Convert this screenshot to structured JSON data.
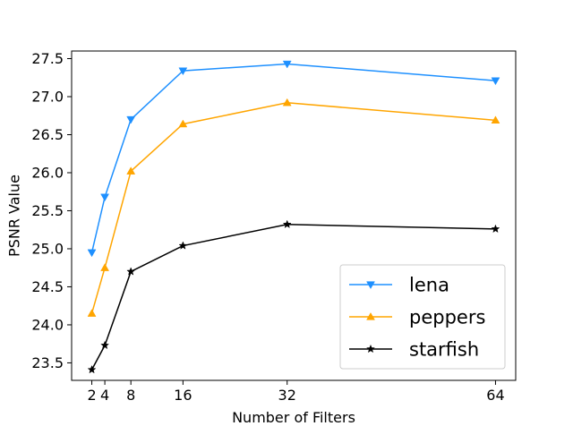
{
  "chart_data": {
    "type": "line",
    "title": "",
    "xlabel": "Number of Filters",
    "ylabel": "PSNR Value",
    "x": [
      2,
      4,
      8,
      16,
      32,
      64
    ],
    "x_ticks": [
      2,
      4,
      8,
      16,
      32,
      64
    ],
    "x_tick_labels": [
      "2",
      "4",
      "8",
      "16",
      "32",
      "64"
    ],
    "xlim": [
      -1.1,
      67.1
    ],
    "ylim": [
      23.27,
      27.6
    ],
    "y_ticks": [
      23.5,
      24.0,
      24.5,
      25.0,
      25.5,
      26.0,
      26.5,
      27.0,
      27.5
    ],
    "y_tick_labels": [
      "23.5",
      "24.0",
      "24.5",
      "25.0",
      "25.5",
      "26.0",
      "26.5",
      "27.0",
      "27.5"
    ],
    "grid": false,
    "legend_position": "lower-right",
    "series": [
      {
        "name": "lena",
        "color": "#1E90FF",
        "marker": "triangle-down",
        "values": [
          24.95,
          25.68,
          26.7,
          27.34,
          27.43,
          27.21
        ]
      },
      {
        "name": "peppers",
        "color": "#FFA500",
        "marker": "triangle-up",
        "values": [
          24.15,
          24.75,
          26.02,
          26.64,
          26.92,
          26.69
        ]
      },
      {
        "name": "starfish",
        "color": "#000000",
        "marker": "star",
        "values": [
          23.41,
          23.73,
          24.7,
          25.04,
          25.32,
          25.26
        ]
      }
    ]
  }
}
